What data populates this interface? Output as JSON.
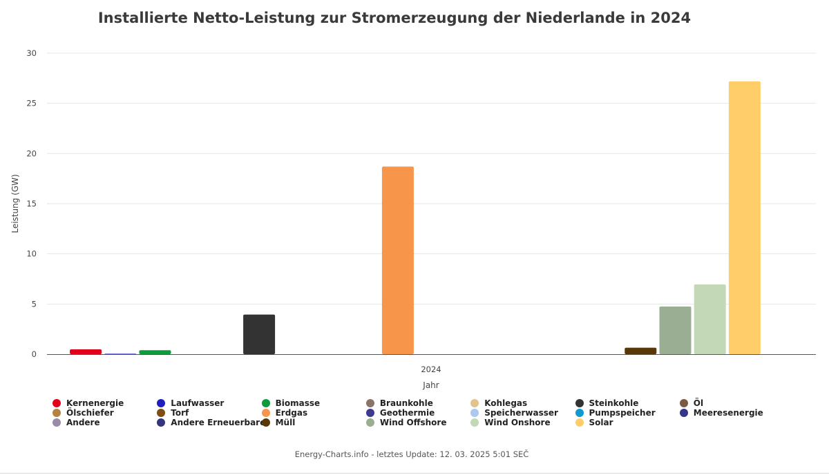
{
  "chart_data": {
    "type": "bar",
    "title": "Installierte Netto-Leistung zur Stromerzeugung der Niederlande in 2024",
    "xlabel": "Jahr",
    "ylabel": "Leistung (GW)",
    "categories": [
      "2024"
    ],
    "ylim": [
      0,
      30
    ],
    "yticks": [
      0,
      5,
      10,
      15,
      20,
      25,
      30
    ],
    "grid": true,
    "legend_position": "bottom",
    "series": [
      {
        "name": "Kernenergie",
        "color": "#e2001a",
        "values": [
          0.48
        ]
      },
      {
        "name": "Laufwasser",
        "color": "#1f1fc0",
        "values": [
          0.04
        ]
      },
      {
        "name": "Biomasse",
        "color": "#0f9a3c",
        "values": [
          0.4
        ]
      },
      {
        "name": "Braunkohle",
        "color": "#8b7465",
        "values": [
          0
        ]
      },
      {
        "name": "Kohlegas",
        "color": "#e0c48b",
        "values": [
          0
        ]
      },
      {
        "name": "Steinkohle",
        "color": "#333333",
        "values": [
          3.95
        ]
      },
      {
        "name": "Öl",
        "color": "#7b5a43",
        "values": [
          0
        ]
      },
      {
        "name": "Ölschiefer",
        "color": "#b5823f",
        "values": [
          0
        ]
      },
      {
        "name": "Torf",
        "color": "#7f4d16",
        "values": [
          0
        ]
      },
      {
        "name": "Erdgas",
        "color": "#f7964b",
        "values": [
          18.7
        ]
      },
      {
        "name": "Geothermie",
        "color": "#3e3a8f",
        "values": [
          0
        ]
      },
      {
        "name": "Speicherwasser",
        "color": "#a9c9ef",
        "values": [
          0
        ]
      },
      {
        "name": "Pumpspeicher",
        "color": "#0f9ad0",
        "values": [
          0
        ]
      },
      {
        "name": "Meeresenergie",
        "color": "#34348a",
        "values": [
          0
        ]
      },
      {
        "name": "Andere",
        "color": "#9b8aa8",
        "values": [
          0
        ]
      },
      {
        "name": "Andere Erneuerbare",
        "color": "#35357e",
        "values": [
          0
        ]
      },
      {
        "name": "Müll",
        "color": "#5a3708",
        "values": [
          0.65
        ]
      },
      {
        "name": "Wind Offshore",
        "color": "#9aae94",
        "values": [
          4.75
        ]
      },
      {
        "name": "Wind Onshore",
        "color": "#c2d8b6",
        "values": [
          6.95
        ]
      },
      {
        "name": "Solar",
        "color": "#ffce68",
        "values": [
          27.2
        ]
      }
    ]
  },
  "footer": "Energy-Charts.info - letztes Update: 12. 03. 2025 5:01 SEČ"
}
